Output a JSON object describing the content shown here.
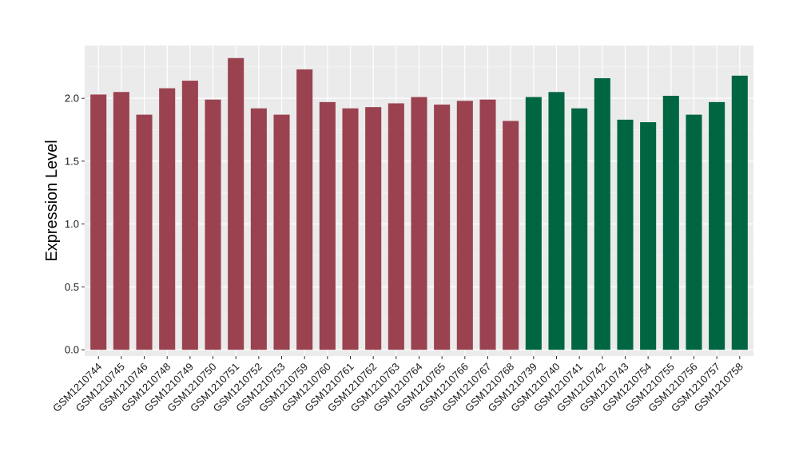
{
  "chart_data": {
    "type": "bar",
    "title": "",
    "xlabel": "",
    "ylabel": "Expression Level",
    "ylim": [
      -0.05,
      2.42
    ],
    "yticks": [
      0.0,
      0.5,
      1.0,
      1.5,
      2.0
    ],
    "ytick_labels": [
      "0.0",
      "0.5",
      "1.0",
      "1.5",
      "2.0"
    ],
    "grid": true,
    "legend": "none",
    "categories": [
      "GSM1210744",
      "GSM1210745",
      "GSM1210746",
      "GSM1210748",
      "GSM1210749",
      "GSM1210750",
      "GSM1210751",
      "GSM1210752",
      "GSM1210753",
      "GSM1210759",
      "GSM1210760",
      "GSM1210761",
      "GSM1210762",
      "GSM1210763",
      "GSM1210764",
      "GSM1210765",
      "GSM1210766",
      "GSM1210767",
      "GSM1210768",
      "GSM1210739",
      "GSM1210740",
      "GSM1210741",
      "GSM1210742",
      "GSM1210743",
      "GSM1210754",
      "GSM1210755",
      "GSM1210756",
      "GSM1210757",
      "GSM1210758"
    ],
    "values": [
      2.03,
      2.05,
      1.87,
      2.08,
      2.14,
      1.99,
      2.32,
      1.92,
      1.87,
      2.23,
      1.97,
      1.92,
      1.93,
      1.96,
      2.01,
      1.95,
      1.98,
      1.99,
      1.82,
      2.01,
      2.05,
      1.92,
      2.16,
      1.83,
      1.81,
      2.02,
      1.87,
      1.97,
      2.18
    ],
    "groups": [
      0,
      0,
      0,
      0,
      0,
      0,
      0,
      0,
      0,
      0,
      0,
      0,
      0,
      0,
      0,
      0,
      0,
      0,
      0,
      1,
      1,
      1,
      1,
      1,
      1,
      1,
      1,
      1,
      1
    ],
    "colors": {
      "group_0": "#9a4250",
      "group_1": "#006641",
      "panel_bg": "#ebebeb",
      "grid_major": "#ffffff",
      "grid_minor": "#f5f5f5",
      "text": "#000000",
      "tick_text": "#1a1a1a"
    }
  }
}
